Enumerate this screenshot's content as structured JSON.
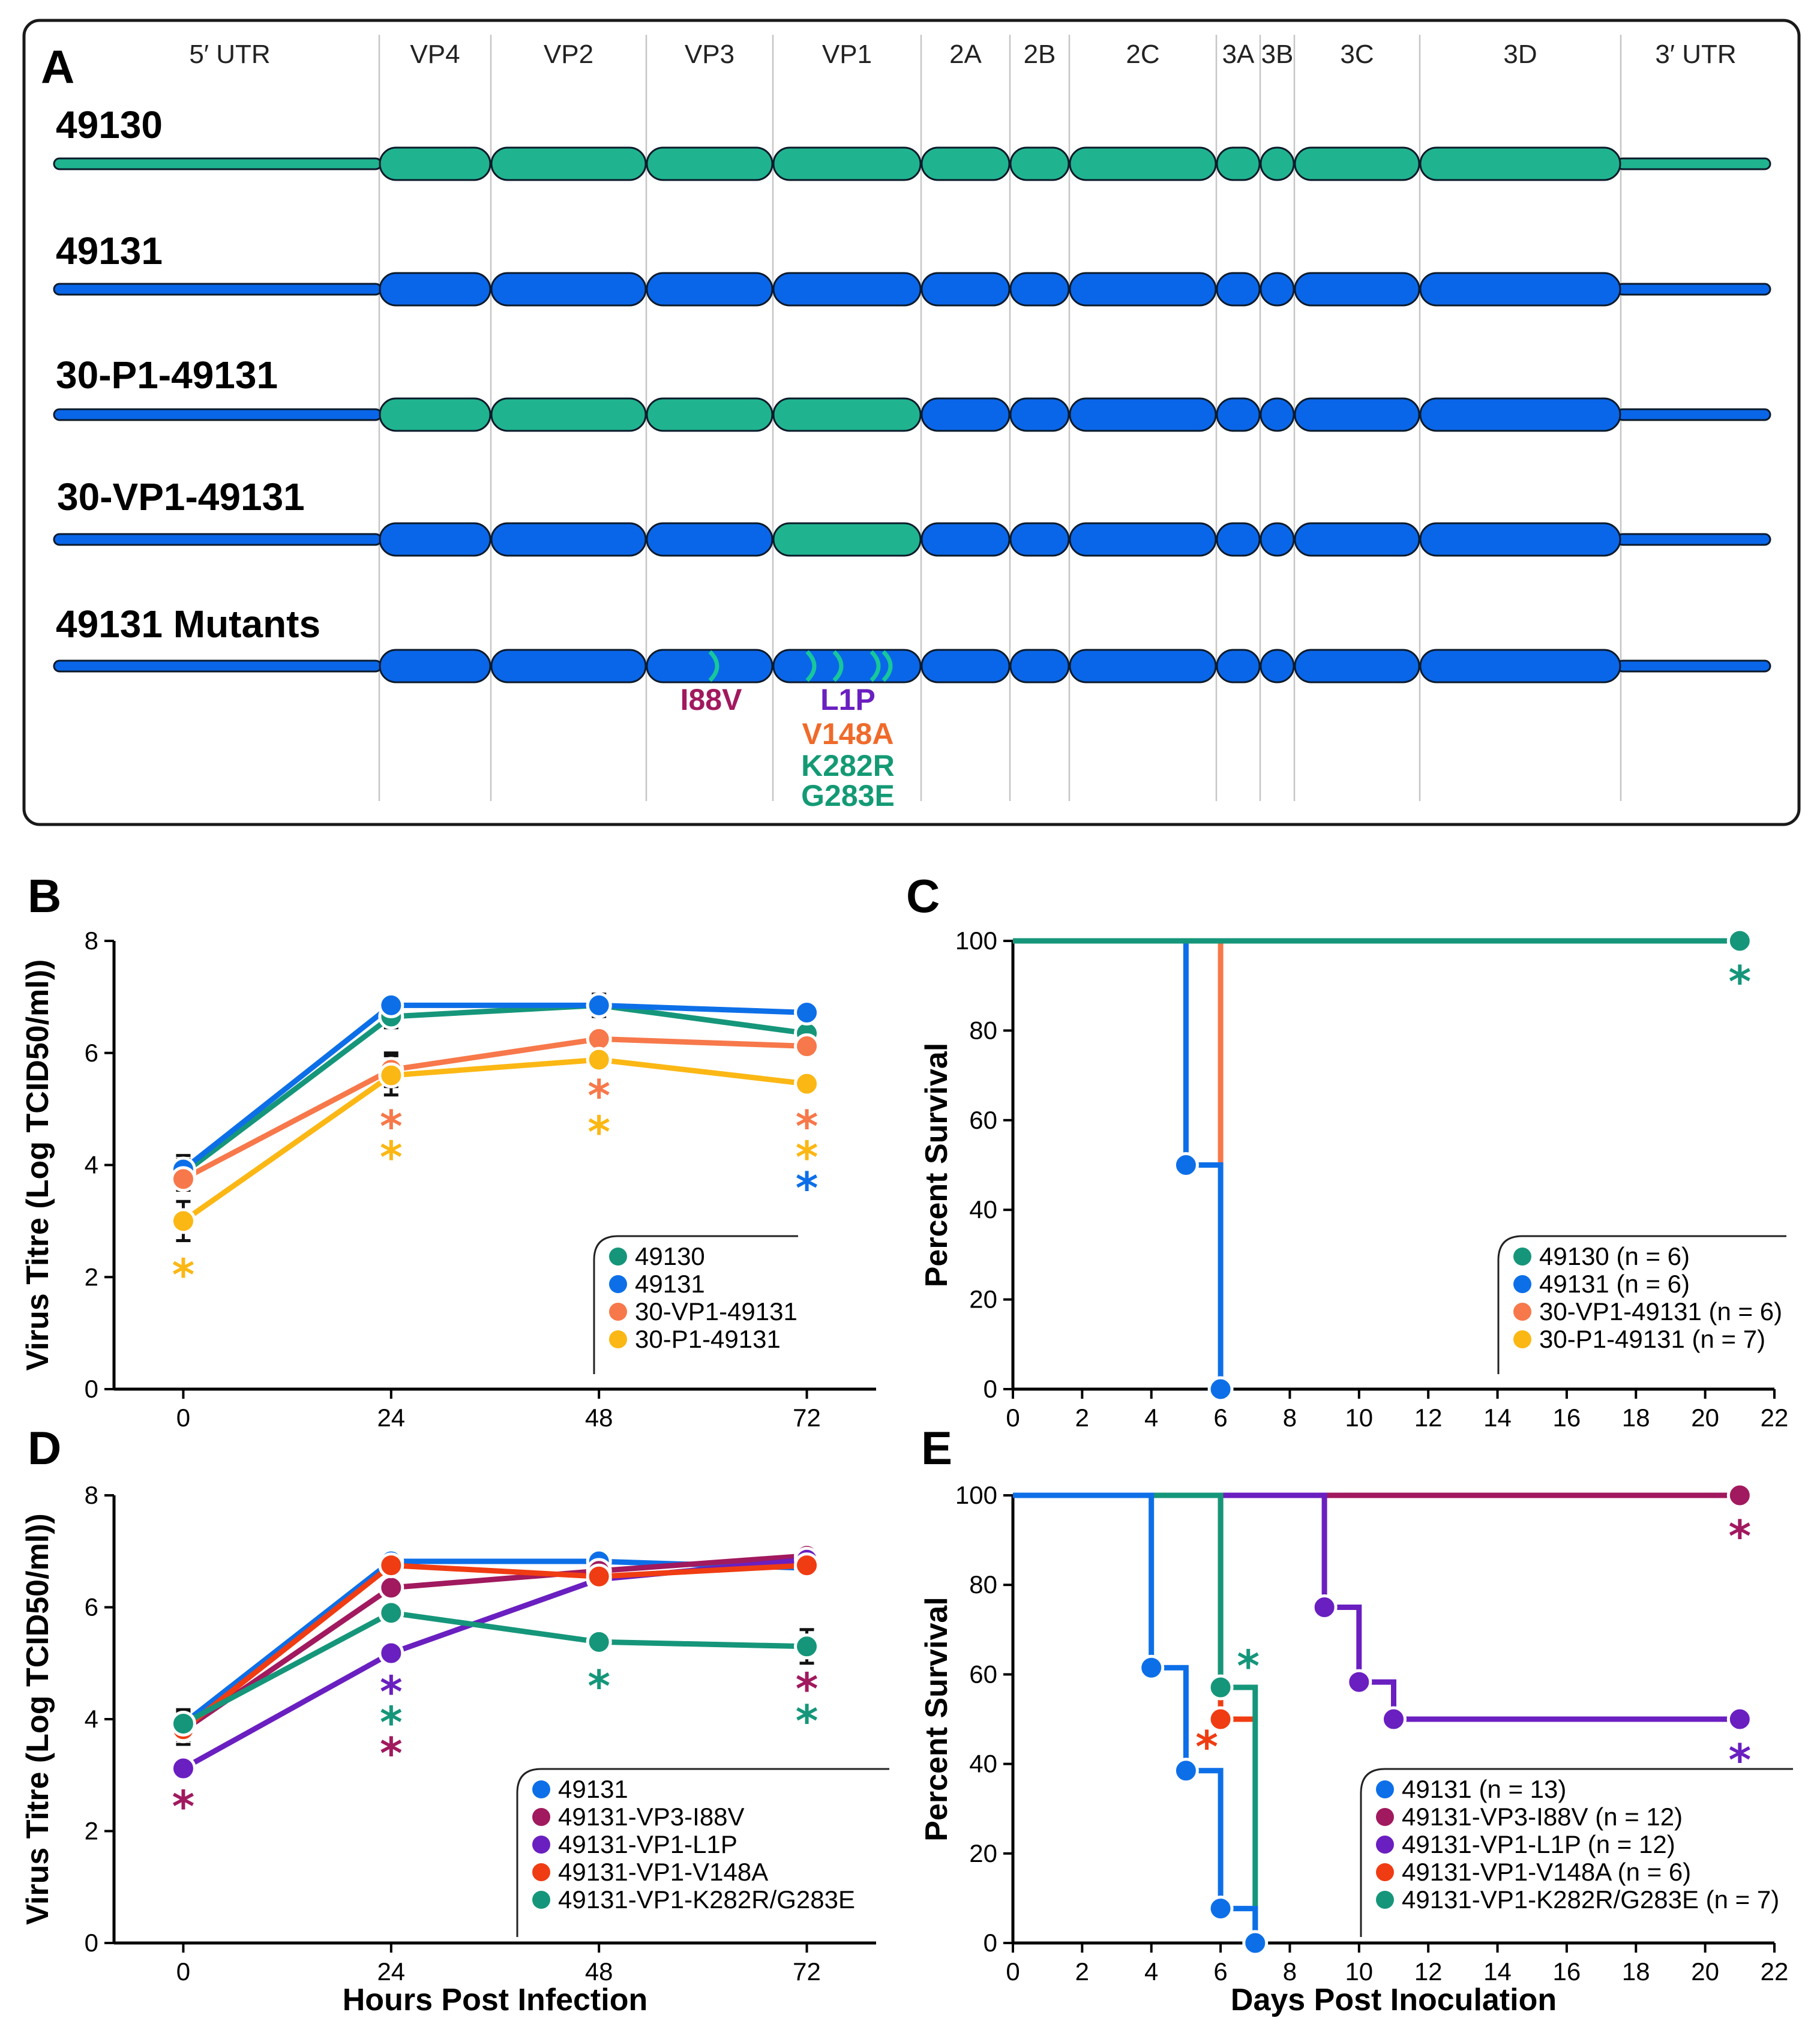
{
  "panel_letters": {
    "a": "A",
    "b": "B",
    "c": "C",
    "d": "D",
    "e": "E"
  },
  "genome": {
    "segments": [
      "5′ UTR",
      "VP4",
      "VP2",
      "VP3",
      "VP1",
      "2A",
      "2B",
      "2C",
      "3A",
      "3B",
      "3C",
      "3D",
      "3′ UTR"
    ],
    "colors": {
      "green": "#1fb48f",
      "blue": "#0a66e8"
    },
    "rows": [
      {
        "label": "49130",
        "pattern": [
          "green",
          "green",
          "green",
          "green",
          "green",
          "green",
          "green",
          "green",
          "green",
          "green",
          "green",
          "green",
          "green"
        ]
      },
      {
        "label": "49131",
        "pattern": [
          "blue",
          "blue",
          "blue",
          "blue",
          "blue",
          "blue",
          "blue",
          "blue",
          "blue",
          "blue",
          "blue",
          "blue",
          "blue"
        ]
      },
      {
        "label": "30-P1-49131",
        "pattern": [
          "blue",
          "green",
          "green",
          "green",
          "green",
          "blue",
          "blue",
          "blue",
          "blue",
          "blue",
          "blue",
          "blue",
          "blue"
        ]
      },
      {
        "label": "30-VP1-49131",
        "pattern": [
          "blue",
          "blue",
          "blue",
          "blue",
          "green",
          "blue",
          "blue",
          "blue",
          "blue",
          "blue",
          "blue",
          "blue",
          "blue"
        ]
      },
      {
        "label": "49131 Mutants",
        "pattern": [
          "blue",
          "blue",
          "blue",
          "blue",
          "blue",
          "blue",
          "blue",
          "blue",
          "blue",
          "blue",
          "blue",
          "blue",
          "blue"
        ]
      }
    ],
    "mutations": [
      {
        "label": "I88V",
        "color": "#a1195e"
      },
      {
        "label": "L1P",
        "color": "#6a1fc0"
      },
      {
        "label": "V148A",
        "color": "#f06a2a"
      },
      {
        "label": "K282R",
        "color": "#139a74"
      },
      {
        "label": "G283E",
        "color": "#139a74"
      }
    ]
  },
  "chart_data": [
    {
      "panel": "B",
      "type": "line",
      "xlabel": "",
      "ylabel": "Virus Titre (Log TCID50/ml))",
      "x": [
        0,
        24,
        48,
        72
      ],
      "xlim": [
        -8,
        80
      ],
      "ylim": [
        0,
        8
      ],
      "xticks": [
        "0",
        "24",
        "48",
        "72"
      ],
      "yticks": [
        "0",
        "2",
        "4",
        "6",
        "8"
      ],
      "series": [
        {
          "name": "49130",
          "color": "#15967a",
          "values": [
            3.85,
            6.65,
            6.85,
            6.35
          ],
          "errors": [
            0.25,
            0.2,
            0.2,
            0.1
          ]
        },
        {
          "name": "49131",
          "color": "#0d6fe8",
          "values": [
            3.92,
            6.85,
            6.85,
            6.72
          ],
          "errors": [
            0.25,
            0.15,
            0.15,
            0.08
          ]
        },
        {
          "name": "30-VP1-49131",
          "color": "#f7784a",
          "values": [
            3.75,
            5.7,
            6.25,
            6.12
          ],
          "errors": [
            0.2,
            0.3,
            0.15,
            0.1
          ]
        },
        {
          "name": "30-P1-49131",
          "color": "#fbb714",
          "values": [
            3.0,
            5.6,
            5.88,
            5.45
          ],
          "errors": [
            0.35,
            0.35,
            0.12,
            0.1
          ]
        }
      ],
      "stars": [
        {
          "x": 0,
          "y": 2.05,
          "color": "#fbb714"
        },
        {
          "x": 24,
          "y": 4.7,
          "color": "#f7784a"
        },
        {
          "x": 24,
          "y": 4.15,
          "color": "#fbb714"
        },
        {
          "x": 48,
          "y": 5.25,
          "color": "#f7784a"
        },
        {
          "x": 48,
          "y": 4.6,
          "color": "#fbb714"
        },
        {
          "x": 72,
          "y": 4.7,
          "color": "#f7784a"
        },
        {
          "x": 72,
          "y": 4.15,
          "color": "#fbb714"
        },
        {
          "x": 72,
          "y": 3.6,
          "color": "#0d6fe8"
        }
      ]
    },
    {
      "panel": "C",
      "type": "line",
      "xlabel": "",
      "ylabel": "Percent Survival",
      "xlim": [
        0,
        22
      ],
      "ylim": [
        0,
        100
      ],
      "xticks": [
        "0",
        "2",
        "4",
        "6",
        "8",
        "10",
        "12",
        "14",
        "16",
        "18",
        "20",
        "22"
      ],
      "yticks": [
        "0",
        "20",
        "40",
        "60",
        "80",
        "100"
      ],
      "series": [
        {
          "name": "30-P1-49131 (n = 7)",
          "color": "#fbb714",
          "steps": [
            [
              0,
              100
            ],
            [
              21,
              100
            ]
          ],
          "points": [
            [
              21,
              100
            ]
          ]
        },
        {
          "name": "30-VP1-49131 (n = 6)",
          "color": "#f7784a",
          "steps": [
            [
              0,
              100
            ],
            [
              6,
              100
            ],
            [
              6,
              50
            ]
          ],
          "points": []
        },
        {
          "name": "49131 (n = 6)",
          "color": "#0d6fe8",
          "steps": [
            [
              0,
              100
            ],
            [
              5,
              100
            ],
            [
              5,
              50
            ],
            [
              6,
              50
            ],
            [
              6,
              0
            ]
          ],
          "points": [
            [
              5,
              50
            ],
            [
              6,
              0
            ]
          ]
        },
        {
          "name": "49130 (n = 6)",
          "color": "#15967a",
          "steps": [
            [
              0,
              100
            ],
            [
              21,
              100
            ]
          ],
          "points": [
            [
              21,
              100
            ]
          ]
        }
      ],
      "legend_order": [
        "49130 (n = 6)",
        "49131 (n = 6)",
        "30-VP1-49131 (n = 6)",
        "30-P1-49131 (n = 7)"
      ],
      "stars": [
        {
          "x": 21,
          "y": 91,
          "color": "#15967a"
        }
      ]
    },
    {
      "panel": "D",
      "type": "line",
      "xlabel": "Hours Post Infection",
      "ylabel": "Virus Titre (Log TCID50/ml))",
      "x": [
        0,
        24,
        48,
        72
      ],
      "xlim": [
        -8,
        80
      ],
      "ylim": [
        0,
        8
      ],
      "xticks": [
        "0",
        "24",
        "48",
        "72"
      ],
      "yticks": [
        "0",
        "2",
        "4",
        "6",
        "8"
      ],
      "series": [
        {
          "name": "49131",
          "color": "#0d6fe8",
          "values": [
            3.92,
            6.82,
            6.82,
            6.7
          ],
          "errors": [
            0.25,
            0.12,
            0.12,
            0.12
          ]
        },
        {
          "name": "49131-VP3-I88V",
          "color": "#a1195e",
          "values": [
            3.8,
            6.35,
            6.65,
            6.92
          ],
          "errors": [
            0.25,
            0.15,
            0.15,
            0.1
          ]
        },
        {
          "name": "49131-VP1-L1P",
          "color": "#6a1fc0",
          "values": [
            3.12,
            5.18,
            6.5,
            6.85
          ],
          "errors": [
            0.15,
            0.12,
            0.15,
            0.12
          ]
        },
        {
          "name": "49131-VP1-V148A",
          "color": "#f03c12",
          "values": [
            3.82,
            6.75,
            6.55,
            6.75
          ],
          "errors": [
            0.2,
            0.1,
            0.12,
            0.1
          ]
        },
        {
          "name": "49131-VP1-K282R/G283E",
          "color": "#15967a",
          "values": [
            3.92,
            5.9,
            5.38,
            5.3
          ],
          "errors": [
            0.2,
            0.15,
            0.15,
            0.3
          ]
        }
      ],
      "stars": [
        {
          "x": 0,
          "y": 2.45,
          "color": "#a1195e"
        },
        {
          "x": 24,
          "y": 4.5,
          "color": "#6a1fc0"
        },
        {
          "x": 24,
          "y": 3.95,
          "color": "#15967a"
        },
        {
          "x": 24,
          "y": 3.4,
          "color": "#a1195e"
        },
        {
          "x": 48,
          "y": 4.6,
          "color": "#15967a"
        },
        {
          "x": 72,
          "y": 4.55,
          "color": "#a1195e"
        },
        {
          "x": 72,
          "y": 3.98,
          "color": "#15967a"
        }
      ]
    },
    {
      "panel": "E",
      "type": "line",
      "xlabel": "Days Post Inoculation",
      "ylabel": "Percent Survival",
      "xlim": [
        0,
        22
      ],
      "ylim": [
        0,
        100
      ],
      "xticks": [
        "0",
        "2",
        "4",
        "6",
        "8",
        "10",
        "12",
        "14",
        "16",
        "18",
        "20",
        "22"
      ],
      "yticks": [
        "0",
        "20",
        "40",
        "60",
        "80",
        "100"
      ],
      "series": [
        {
          "name": "49131-VP3-I88V (n = 12)",
          "color": "#a1195e",
          "steps": [
            [
              0,
              100
            ],
            [
              21,
              100
            ]
          ],
          "points": [
            [
              21,
              100
            ]
          ]
        },
        {
          "name": "49131-VP1-L1P (n = 12)",
          "color": "#6a1fc0",
          "steps": [
            [
              0,
              100
            ],
            [
              9,
              100
            ],
            [
              9,
              75
            ],
            [
              10,
              75
            ],
            [
              10,
              58.3
            ],
            [
              11,
              58.3
            ],
            [
              11,
              50
            ],
            [
              21,
              50
            ]
          ],
          "points": [
            [
              9,
              75
            ],
            [
              10,
              58.3
            ],
            [
              11,
              50
            ],
            [
              21,
              50
            ]
          ]
        },
        {
          "name": "49131-VP1-V148A (n = 6)",
          "color": "#f03c12",
          "steps": [
            [
              0,
              100
            ],
            [
              6,
              100
            ],
            [
              6,
              50
            ],
            [
              7,
              50
            ]
          ],
          "points": [
            [
              6,
              50
            ]
          ]
        },
        {
          "name": "49131-VP1-K282R/G283E (n = 7)",
          "color": "#15967a",
          "steps": [
            [
              0,
              100
            ],
            [
              6,
              100
            ],
            [
              6,
              57.1
            ],
            [
              7,
              57.1
            ],
            [
              7,
              0
            ]
          ],
          "points": [
            [
              6,
              57.1
            ]
          ]
        },
        {
          "name": "49131 (n = 13)",
          "color": "#0d6fe8",
          "steps": [
            [
              0,
              100
            ],
            [
              4,
              100
            ],
            [
              4,
              61.5
            ],
            [
              5,
              61.5
            ],
            [
              5,
              38.5
            ],
            [
              6,
              38.5
            ],
            [
              6,
              7.7
            ],
            [
              7,
              7.7
            ],
            [
              7,
              0
            ]
          ],
          "points": [
            [
              4,
              61.5
            ],
            [
              5,
              38.5
            ],
            [
              6,
              7.7
            ],
            [
              7,
              0
            ]
          ]
        }
      ],
      "legend_order": [
        "49131 (n = 13)",
        "49131-VP3-I88V (n = 12)",
        "49131-VP1-L1P (n = 12)",
        "49131-VP1-V148A (n = 6)",
        "49131-VP1-K282R/G283E (n = 7)"
      ],
      "stars": [
        {
          "x": 21,
          "y": 91,
          "color": "#a1195e"
        },
        {
          "x": 21,
          "y": 41,
          "color": "#6a1fc0"
        },
        {
          "x": 5.6,
          "y": 44,
          "color": "#f03c12"
        },
        {
          "x": 6.8,
          "y": 62,
          "color": "#15967a"
        }
      ]
    }
  ]
}
